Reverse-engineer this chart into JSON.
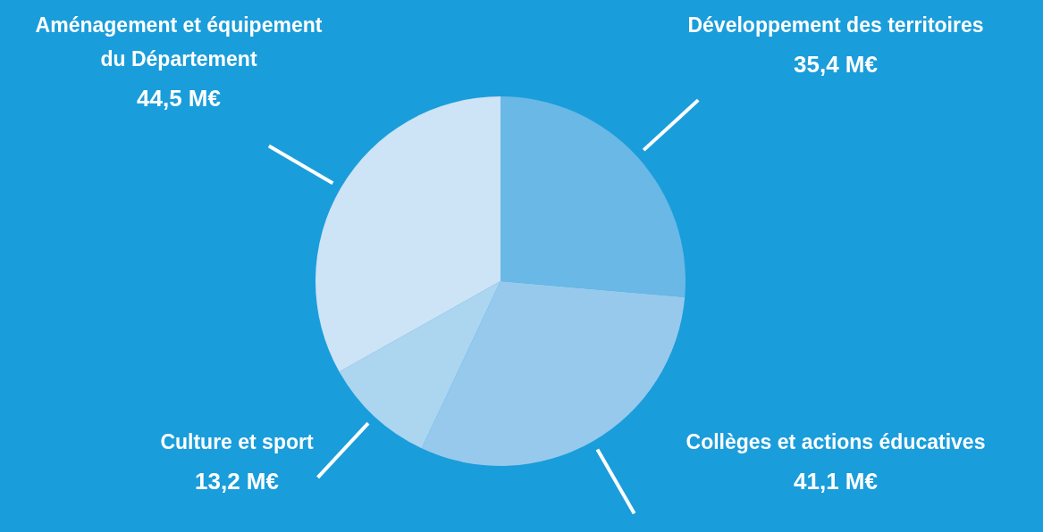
{
  "chart_data": {
    "type": "pie",
    "categories": [
      "Développement des territoires",
      "Collèges et actions éducatives",
      "Culture et sport",
      "Aménagement et équipement du Département"
    ],
    "values": [
      35.4,
      41.1,
      13.2,
      44.5
    ],
    "colors": [
      "#69b8e6",
      "#97c9ec",
      "#acd5f0",
      "#cde3f6"
    ],
    "value_labels": [
      "35,4 M€",
      "41,1 M€",
      "13,2 M€",
      "44,5 M€"
    ]
  }
}
